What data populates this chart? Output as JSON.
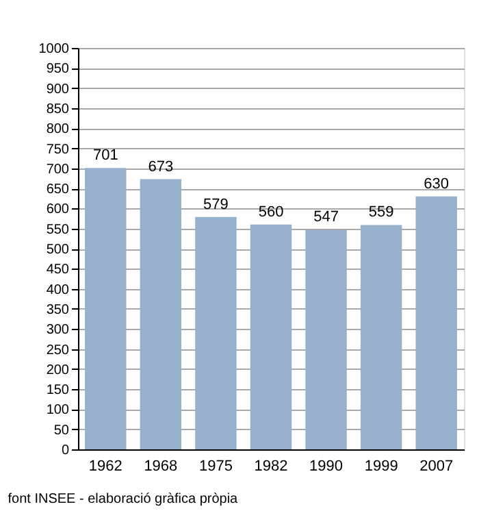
{
  "chart_data": {
    "type": "bar",
    "categories": [
      "1962",
      "1968",
      "1975",
      "1982",
      "1990",
      "1999",
      "2007"
    ],
    "values": [
      701,
      673,
      579,
      560,
      547,
      559,
      630
    ],
    "color": "#97b0cb",
    "data_labels": true,
    "ylim": [
      0,
      1000
    ],
    "yticks": [
      0,
      50,
      100,
      150,
      200,
      250,
      300,
      350,
      400,
      450,
      500,
      550,
      600,
      650,
      700,
      750,
      800,
      850,
      900,
      950,
      1000
    ],
    "grid": "y",
    "annotations": [
      "font INSEE - elaboració gràfica pròpia"
    ]
  }
}
